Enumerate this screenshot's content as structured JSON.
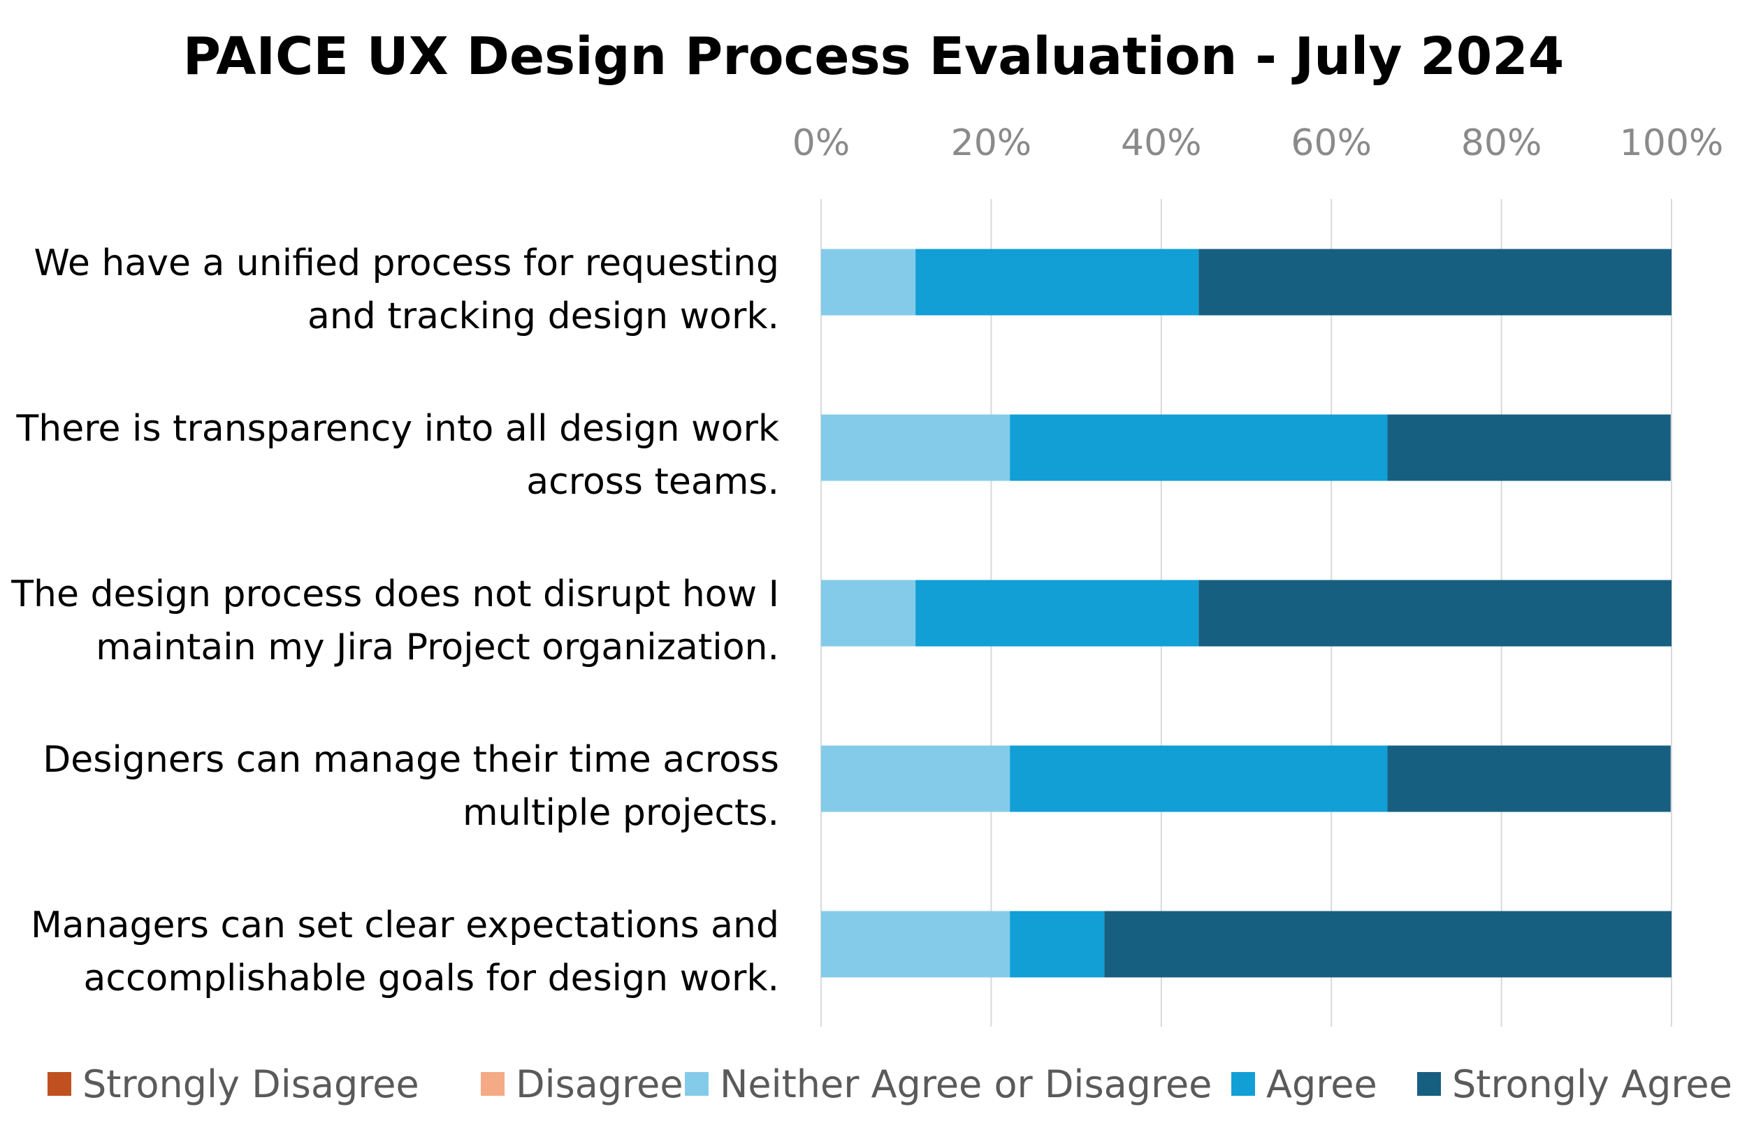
{
  "chart_data": {
    "type": "bar",
    "orientation": "horizontal",
    "stacked": "percent",
    "title": "PAICE UX Design Process Evaluation - July 2024",
    "xlabel": "",
    "ylabel": "",
    "xlim": [
      0,
      100
    ],
    "ticks": [
      "0%",
      "20%",
      "40%",
      "60%",
      "80%",
      "100%"
    ],
    "tick_values": [
      0,
      20,
      40,
      60,
      80,
      100
    ],
    "grid": true,
    "legend_position": "bottom",
    "categories": [
      [
        "We have a unified process for requesting",
        "and tracking design work."
      ],
      [
        "There is transparency into all design work",
        "across teams."
      ],
      [
        "The design process does not disrupt how I",
        "maintain my Jira Project organization."
      ],
      [
        "Designers can manage their time across",
        "multiple projects."
      ],
      [
        "Managers can set clear expectations and",
        "accomplishable goals for design work."
      ]
    ],
    "series": [
      {
        "name": "Strongly Disagree",
        "color": "#c0501f",
        "values": [
          0,
          0,
          0,
          0,
          0
        ]
      },
      {
        "name": "Disagree",
        "color": "#f4aa84",
        "values": [
          0,
          0,
          0,
          0,
          0
        ]
      },
      {
        "name": "Neither Agree or Disagree",
        "color": "#84cbea",
        "values": [
          11.1,
          22.2,
          11.1,
          22.2,
          22.2
        ]
      },
      {
        "name": "Agree",
        "color": "#119fd6",
        "values": [
          33.3,
          44.4,
          33.3,
          44.4,
          11.1
        ]
      },
      {
        "name": "Strongly Agree",
        "color": "#175f80",
        "values": [
          55.6,
          33.3,
          55.6,
          33.3,
          66.7
        ]
      }
    ]
  }
}
